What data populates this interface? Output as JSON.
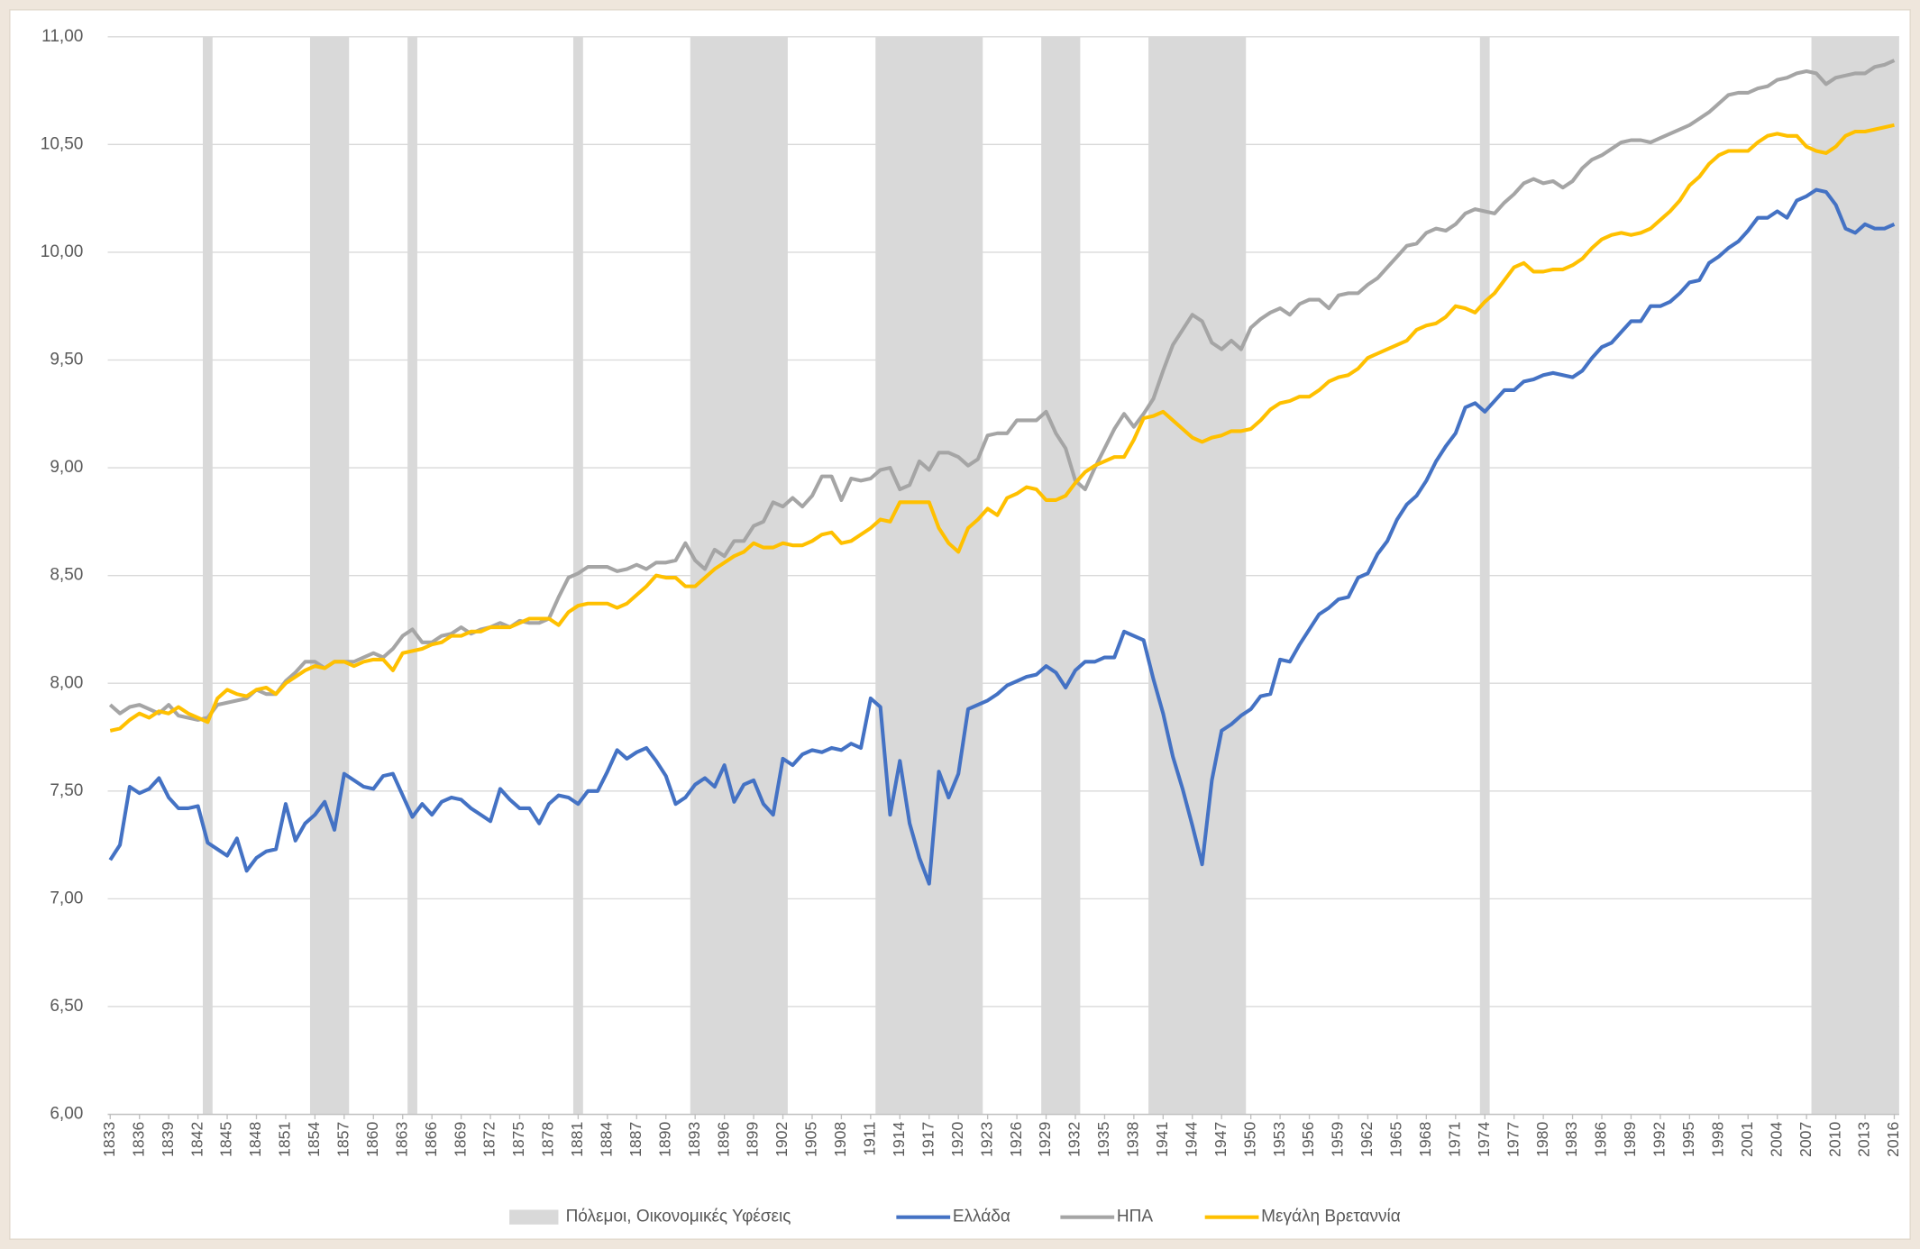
{
  "chart_data": {
    "type": "line",
    "x": [
      1833,
      1834,
      1835,
      1836,
      1837,
      1838,
      1839,
      1840,
      1841,
      1842,
      1843,
      1844,
      1845,
      1846,
      1847,
      1848,
      1849,
      1850,
      1851,
      1852,
      1853,
      1854,
      1855,
      1856,
      1857,
      1858,
      1859,
      1860,
      1861,
      1862,
      1863,
      1864,
      1865,
      1866,
      1867,
      1868,
      1869,
      1870,
      1871,
      1872,
      1873,
      1874,
      1875,
      1876,
      1877,
      1878,
      1879,
      1880,
      1881,
      1882,
      1883,
      1884,
      1885,
      1886,
      1887,
      1888,
      1889,
      1890,
      1891,
      1892,
      1893,
      1894,
      1895,
      1896,
      1897,
      1898,
      1899,
      1900,
      1901,
      1902,
      1903,
      1904,
      1905,
      1906,
      1907,
      1908,
      1909,
      1910,
      1911,
      1912,
      1913,
      1914,
      1915,
      1916,
      1917,
      1918,
      1919,
      1920,
      1921,
      1922,
      1923,
      1924,
      1925,
      1926,
      1927,
      1928,
      1929,
      1930,
      1931,
      1932,
      1933,
      1934,
      1935,
      1936,
      1937,
      1938,
      1939,
      1940,
      1941,
      1942,
      1943,
      1944,
      1945,
      1946,
      1947,
      1948,
      1949,
      1950,
      1951,
      1952,
      1953,
      1954,
      1955,
      1956,
      1957,
      1958,
      1959,
      1960,
      1961,
      1962,
      1963,
      1964,
      1965,
      1966,
      1967,
      1968,
      1969,
      1970,
      1971,
      1972,
      1973,
      1974,
      1975,
      1976,
      1977,
      1978,
      1979,
      1980,
      1981,
      1982,
      1983,
      1984,
      1985,
      1986,
      1987,
      1988,
      1989,
      1990,
      1991,
      1992,
      1993,
      1994,
      1995,
      1996,
      1997,
      1998,
      1999,
      2000,
      2001,
      2002,
      2003,
      2004,
      2005,
      2006,
      2007,
      2008,
      2009,
      2010,
      2011,
      2012,
      2013,
      2014,
      2015,
      2016
    ],
    "bands": {
      "name": "Πόλεμοι, Οικονομικές Υφέσεις",
      "color": "#d9d9d9",
      "ranges": [
        [
          1843,
          1843
        ],
        [
          1854,
          1857
        ],
        [
          1864,
          1864
        ],
        [
          1881,
          1881
        ],
        [
          1893,
          1902
        ],
        [
          1912,
          1922
        ],
        [
          1929,
          1932
        ],
        [
          1940,
          1949
        ],
        [
          1974,
          1974
        ],
        [
          2008,
          2016
        ]
      ]
    },
    "series": [
      {
        "name": "Ελλάδα",
        "color": "#4472c4",
        "values": [
          7.18,
          7.25,
          7.52,
          7.49,
          7.51,
          7.56,
          7.47,
          7.42,
          7.42,
          7.43,
          7.26,
          7.23,
          7.2,
          7.28,
          7.13,
          7.19,
          7.22,
          7.23,
          7.44,
          7.27,
          7.35,
          7.39,
          7.45,
          7.32,
          7.58,
          7.55,
          7.52,
          7.51,
          7.57,
          7.58,
          7.48,
          7.38,
          7.44,
          7.39,
          7.45,
          7.47,
          7.46,
          7.42,
          7.39,
          7.36,
          7.51,
          7.46,
          7.42,
          7.42,
          7.35,
          7.44,
          7.48,
          7.47,
          7.44,
          7.5,
          7.5,
          7.59,
          7.69,
          7.65,
          7.68,
          7.7,
          7.64,
          7.57,
          7.44,
          7.47,
          7.53,
          7.56,
          7.52,
          7.62,
          7.45,
          7.53,
          7.55,
          7.44,
          7.39,
          7.65,
          7.62,
          7.67,
          7.69,
          7.68,
          7.7,
          7.69,
          7.72,
          7.7,
          7.93,
          7.89,
          7.39,
          7.64,
          7.35,
          7.19,
          7.07,
          7.59,
          7.47,
          7.58,
          7.88,
          7.9,
          7.92,
          7.95,
          7.99,
          8.01,
          8.03,
          8.04,
          8.08,
          8.05,
          7.98,
          8.06,
          8.1,
          8.1,
          8.12,
          8.12,
          8.24,
          8.22,
          8.2,
          8.02,
          7.86,
          7.66,
          7.51,
          7.34,
          7.16,
          7.55,
          7.78,
          7.81,
          7.85,
          7.88,
          7.94,
          7.95,
          8.11,
          8.1,
          8.18,
          8.25,
          8.32,
          8.35,
          8.39,
          8.4,
          8.49,
          8.51,
          8.6,
          8.66,
          8.76,
          8.83,
          8.87,
          8.94,
          9.03,
          9.1,
          9.16,
          9.28,
          9.3,
          9.26,
          9.31,
          9.36,
          9.36,
          9.4,
          9.41,
          9.43,
          9.44,
          9.43,
          9.42,
          9.45,
          9.51,
          9.56,
          9.58,
          9.63,
          9.68,
          9.68,
          9.75,
          9.75,
          9.77,
          9.81,
          9.86,
          9.87,
          9.95,
          9.98,
          10.02,
          10.05,
          10.1,
          10.16,
          10.16,
          10.19,
          10.16,
          10.24,
          10.26,
          10.29,
          10.28,
          10.22,
          10.11,
          10.09,
          10.13,
          10.11,
          10.11,
          10.13
        ]
      },
      {
        "name": "ΗΠΑ",
        "color": "#a5a5a5",
        "values": [
          7.9,
          7.86,
          7.89,
          7.9,
          7.88,
          7.86,
          7.9,
          7.85,
          7.84,
          7.83,
          7.84,
          7.9,
          7.91,
          7.92,
          7.93,
          7.97,
          7.95,
          7.95,
          8.01,
          8.05,
          8.1,
          8.1,
          8.07,
          8.1,
          8.1,
          8.1,
          8.12,
          8.14,
          8.12,
          8.16,
          8.22,
          8.25,
          8.19,
          8.19,
          8.22,
          8.23,
          8.26,
          8.23,
          8.25,
          8.26,
          8.28,
          8.26,
          8.29,
          8.28,
          8.28,
          8.3,
          8.4,
          8.49,
          8.51,
          8.54,
          8.54,
          8.54,
          8.52,
          8.53,
          8.55,
          8.53,
          8.56,
          8.56,
          8.57,
          8.65,
          8.57,
          8.53,
          8.62,
          8.59,
          8.66,
          8.66,
          8.73,
          8.75,
          8.84,
          8.82,
          8.86,
          8.82,
          8.87,
          8.96,
          8.96,
          8.85,
          8.95,
          8.94,
          8.95,
          8.99,
          9.0,
          8.9,
          8.92,
          9.03,
          8.99,
          9.07,
          9.07,
          9.05,
          9.01,
          9.04,
          9.15,
          9.16,
          9.16,
          9.22,
          9.22,
          9.22,
          9.26,
          9.16,
          9.09,
          8.94,
          8.9,
          9.0,
          9.09,
          9.18,
          9.25,
          9.19,
          9.25,
          9.32,
          9.45,
          9.57,
          9.64,
          9.71,
          9.68,
          9.58,
          9.55,
          9.59,
          9.55,
          9.65,
          9.69,
          9.72,
          9.74,
          9.71,
          9.76,
          9.78,
          9.78,
          9.74,
          9.8,
          9.81,
          9.81,
          9.85,
          9.88,
          9.93,
          9.98,
          10.03,
          10.04,
          10.09,
          10.11,
          10.1,
          10.13,
          10.18,
          10.2,
          10.19,
          10.18,
          10.23,
          10.27,
          10.32,
          10.34,
          10.32,
          10.33,
          10.3,
          10.33,
          10.39,
          10.43,
          10.45,
          10.48,
          10.51,
          10.52,
          10.52,
          10.51,
          10.53,
          10.55,
          10.57,
          10.59,
          10.62,
          10.65,
          10.69,
          10.73,
          10.74,
          10.74,
          10.76,
          10.77,
          10.8,
          10.81,
          10.83,
          10.84,
          10.83,
          10.78,
          10.81,
          10.82,
          10.83,
          10.83,
          10.86,
          10.87,
          10.89
        ]
      },
      {
        "name": "Μεγάλη Βρεταννία",
        "color": "#ffc000",
        "values": [
          7.78,
          7.79,
          7.83,
          7.86,
          7.84,
          7.87,
          7.86,
          7.89,
          7.86,
          7.84,
          7.82,
          7.93,
          7.97,
          7.95,
          7.94,
          7.97,
          7.98,
          7.95,
          8.0,
          8.03,
          8.06,
          8.08,
          8.07,
          8.1,
          8.1,
          8.08,
          8.1,
          8.11,
          8.11,
          8.06,
          8.14,
          8.15,
          8.16,
          8.18,
          8.19,
          8.22,
          8.22,
          8.24,
          8.24,
          8.26,
          8.26,
          8.26,
          8.28,
          8.3,
          8.3,
          8.3,
          8.27,
          8.33,
          8.36,
          8.37,
          8.37,
          8.37,
          8.35,
          8.37,
          8.41,
          8.45,
          8.5,
          8.49,
          8.49,
          8.45,
          8.45,
          8.49,
          8.53,
          8.56,
          8.59,
          8.61,
          8.65,
          8.63,
          8.63,
          8.65,
          8.64,
          8.64,
          8.66,
          8.69,
          8.7,
          8.65,
          8.66,
          8.69,
          8.72,
          8.76,
          8.75,
          8.84,
          8.84,
          8.84,
          8.84,
          8.72,
          8.65,
          8.61,
          8.72,
          8.76,
          8.81,
          8.78,
          8.86,
          8.88,
          8.91,
          8.9,
          8.85,
          8.85,
          8.87,
          8.93,
          8.98,
          9.01,
          9.03,
          9.05,
          9.05,
          9.13,
          9.23,
          9.24,
          9.26,
          9.22,
          9.18,
          9.14,
          9.12,
          9.14,
          9.15,
          9.17,
          9.17,
          9.18,
          9.22,
          9.27,
          9.3,
          9.31,
          9.33,
          9.33,
          9.36,
          9.4,
          9.42,
          9.43,
          9.46,
          9.51,
          9.53,
          9.55,
          9.57,
          9.59,
          9.64,
          9.66,
          9.67,
          9.7,
          9.75,
          9.74,
          9.72,
          9.77,
          9.81,
          9.87,
          9.93,
          9.95,
          9.91,
          9.91,
          9.92,
          9.92,
          9.94,
          9.97,
          10.02,
          10.06,
          10.08,
          10.09,
          10.08,
          10.09,
          10.11,
          10.15,
          10.19,
          10.24,
          10.31,
          10.35,
          10.41,
          10.45,
          10.47,
          10.47,
          10.47,
          10.51,
          10.54,
          10.55,
          10.54,
          10.54,
          10.49,
          10.47,
          10.46,
          10.49,
          10.54,
          10.56,
          10.56,
          10.57,
          10.58,
          10.59
        ]
      }
    ],
    "xlim": [
      1833,
      2016
    ],
    "xticks": [
      1833,
      1836,
      1839,
      1842,
      1845,
      1848,
      1851,
      1854,
      1857,
      1860,
      1863,
      1866,
      1869,
      1872,
      1875,
      1878,
      1881,
      1884,
      1887,
      1890,
      1893,
      1896,
      1899,
      1902,
      1905,
      1908,
      1911,
      1914,
      1917,
      1920,
      1923,
      1926,
      1929,
      1932,
      1935,
      1938,
      1941,
      1944,
      1947,
      1950,
      1953,
      1956,
      1959,
      1962,
      1965,
      1968,
      1971,
      1974,
      1977,
      1980,
      1983,
      1986,
      1989,
      1992,
      1995,
      1998,
      2001,
      2004,
      2007,
      2010,
      2013,
      2016
    ],
    "ylim": [
      6,
      11
    ],
    "yticks": [
      {
        "value": 6,
        "label": "6,00"
      },
      {
        "value": 6.5,
        "label": "6,50"
      },
      {
        "value": 7,
        "label": "7,00"
      },
      {
        "value": 7.5,
        "label": "7,50"
      },
      {
        "value": 8,
        "label": "8,00"
      },
      {
        "value": 8.5,
        "label": "8,50"
      },
      {
        "value": 9,
        "label": "9,00"
      },
      {
        "value": 9.5,
        "label": "9,50"
      },
      {
        "value": 10,
        "label": "10,00"
      },
      {
        "value": 10.5,
        "label": "10,50"
      },
      {
        "value": 11,
        "label": "11,00"
      }
    ],
    "grid": true,
    "legend": "bottom"
  }
}
